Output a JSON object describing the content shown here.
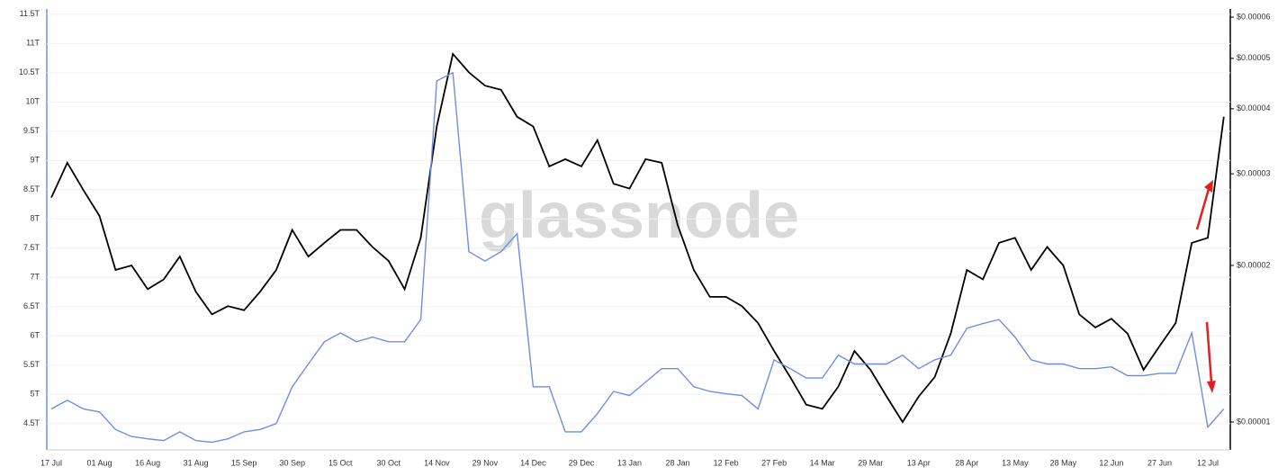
{
  "chart_data": {
    "type": "line",
    "watermark": "glassnode",
    "categories": [
      "17 Jul",
      null,
      null,
      "01 Aug",
      null,
      null,
      "16 Aug",
      null,
      null,
      "31 Aug",
      null,
      null,
      "15 Sep",
      null,
      null,
      "30 Sep",
      null,
      null,
      "15 Oct",
      null,
      null,
      "30 Oct",
      null,
      null,
      "14 Nov",
      null,
      null,
      "29 Nov",
      null,
      null,
      "14 Dec",
      null,
      null,
      "29 Dec",
      null,
      null,
      "13 Jan",
      null,
      null,
      "28 Jan",
      null,
      null,
      "12 Feb",
      null,
      null,
      "27 Feb",
      null,
      null,
      "14 Mar",
      null,
      null,
      "29 Mar",
      null,
      null,
      "13 Apr",
      null,
      null,
      "28 Apr",
      null,
      null,
      "13 May",
      null,
      null,
      "28 May",
      null,
      null,
      "12 Jun",
      null,
      null,
      "27 Jun",
      null,
      null,
      "12 Jul",
      null
    ],
    "series": [
      {
        "color": "#000000",
        "axis": "y2",
        "values": [
          2.7e-05,
          3.15e-05,
          2.79e-05,
          2.49e-05,
          1.96e-05,
          2e-05,
          1.8e-05,
          1.88e-05,
          2.08e-05,
          1.78e-05,
          1.61e-05,
          1.67e-05,
          1.64e-05,
          1.78e-05,
          1.96e-05,
          2.34e-05,
          2.08e-05,
          2.21e-05,
          2.34e-05,
          2.34e-05,
          2.17e-05,
          2.04e-05,
          1.8e-05,
          2.26e-05,
          3.7e-05,
          5.1e-05,
          4.7e-05,
          4.43e-05,
          4.35e-05,
          3.86e-05,
          3.7e-05,
          3.1e-05,
          3.2e-05,
          3.1e-05,
          3.48e-05,
          2.87e-05,
          2.81e-05,
          3.2e-05,
          3.15e-05,
          2.39e-05,
          1.96e-05,
          1.74e-05,
          1.74e-05,
          1.67e-05,
          1.55e-05,
          1.37e-05,
          1.22e-05,
          1.08e-05,
          1.06e-05,
          1.17e-05,
          1.37e-05,
          1.26e-05,
          1.12e-05,
          1e-05,
          1.12e-05,
          1.22e-05,
          1.48e-05,
          1.96e-05,
          1.88e-05,
          2.21e-05,
          2.26e-05,
          1.96e-05,
          2.17e-05,
          2e-05,
          1.61e-05,
          1.52e-05,
          1.58e-05,
          1.48e-05,
          1.26e-05,
          1.4e-05,
          1.55e-05,
          2.21e-05,
          2.26e-05,
          3.86e-05
        ]
      },
      {
        "color": "#6f8ee0",
        "values": [
          4.75,
          4.9,
          4.75,
          4.7,
          4.4,
          4.28,
          4.24,
          4.21,
          4.36,
          4.21,
          4.18,
          4.24,
          4.36,
          4.4,
          4.5,
          5.13,
          5.52,
          5.9,
          6.05,
          5.9,
          5.98,
          5.9,
          5.9,
          6.28,
          10.36,
          10.5,
          7.44,
          7.28,
          7.44,
          7.75,
          5.13,
          5.13,
          4.36,
          4.36,
          4.67,
          5.05,
          4.98,
          5.21,
          5.44,
          5.44,
          5.13,
          5.05,
          5.01,
          4.98,
          4.75,
          5.59,
          5.44,
          5.28,
          5.28,
          5.67,
          5.52,
          5.52,
          5.52,
          5.67,
          5.44,
          5.59,
          5.67,
          6.13,
          6.21,
          6.28,
          5.98,
          5.59,
          5.52,
          5.52,
          5.44,
          5.44,
          5.47,
          5.32,
          5.32,
          5.36,
          5.36,
          6.05,
          4.44,
          4.75
        ]
      }
    ],
    "ylim": [
      4.05,
      11.59
    ],
    "yticks": [
      {
        "value": 4.5,
        "label": "4.5T"
      },
      {
        "value": 5,
        "label": "5T"
      },
      {
        "value": 5.5,
        "label": "5.5T"
      },
      {
        "value": 6,
        "label": "6T"
      },
      {
        "value": 6.5,
        "label": "6.5T"
      },
      {
        "value": 7,
        "label": "7T"
      },
      {
        "value": 7.5,
        "label": "7.5T"
      },
      {
        "value": 8,
        "label": "8T"
      },
      {
        "value": 8.5,
        "label": "8.5T"
      },
      {
        "value": 9,
        "label": "9T"
      },
      {
        "value": 9.5,
        "label": "9.5T"
      },
      {
        "value": 10,
        "label": "10T"
      },
      {
        "value": 10.5,
        "label": "10.5T"
      },
      {
        "value": 11,
        "label": "11T"
      },
      {
        "value": 11.5,
        "label": "11.5T"
      }
    ],
    "y2lim": [
      8.84e-06,
      6.22e-05
    ],
    "y2log": true,
    "y2ticks": [
      {
        "value": 1e-05,
        "label": "$0.00001"
      },
      {
        "value": 2e-05,
        "label": "$0.00002"
      },
      {
        "value": 3e-05,
        "label": "$0.00003"
      },
      {
        "value": 4e-05,
        "label": "$0.00004"
      },
      {
        "value": 5e-05,
        "label": "$0.00005"
      },
      {
        "value": 6e-05,
        "label": "$0.00006"
      }
    ],
    "grid": true
  }
}
